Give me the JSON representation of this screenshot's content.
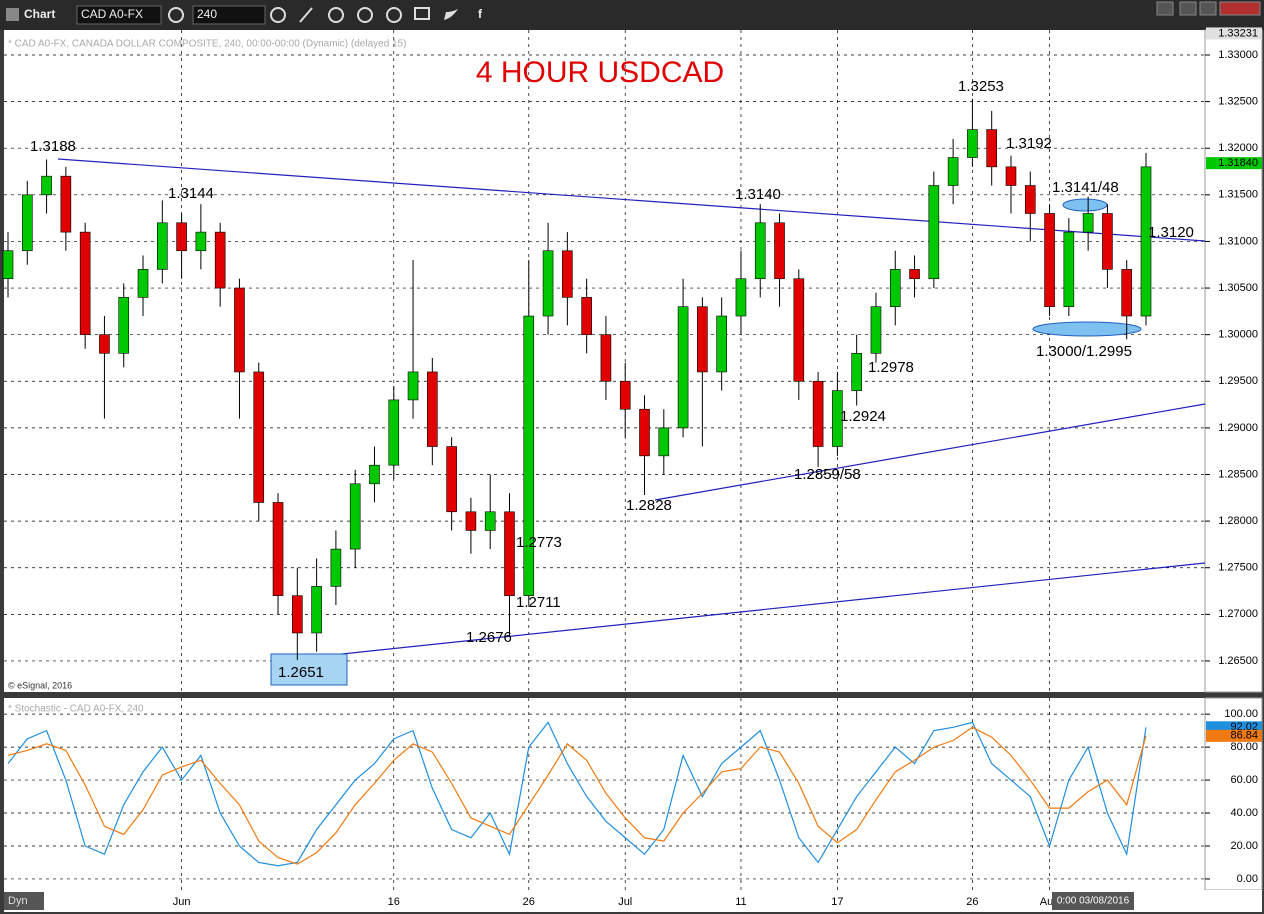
{
  "toolbar": {
    "app": "Chart",
    "symbol": "CAD A0-FX",
    "interval": "240"
  },
  "chart_data": [
    {
      "type": "candlestick",
      "title": "4 HOUR USDCAD",
      "subtitle": "* CAD A0-FX, CANADA DOLLAR COMPOSITE, 240, 00:00-00:00 (Dynamic) (delayed 15)",
      "credit": "© eSignal, 2016",
      "categories": [
        null,
        null,
        null,
        null,
        null,
        null,
        null,
        null,
        null,
        "Jun",
        null,
        null,
        null,
        null,
        null,
        null,
        null,
        null,
        null,
        null,
        "16",
        null,
        null,
        null,
        null,
        null,
        null,
        "26",
        null,
        null,
        null,
        null,
        "Jul",
        null,
        null,
        null,
        null,
        null,
        "11",
        null,
        null,
        null,
        null,
        "17",
        null,
        null,
        null,
        null,
        null,
        null,
        "26",
        null,
        null,
        null,
        "Aug",
        null,
        null,
        null,
        null,
        null
      ],
      "open": [
        1.306,
        1.309,
        1.315,
        1.317,
        1.311,
        1.3,
        1.298,
        1.304,
        1.307,
        1.312,
        1.309,
        1.311,
        1.305,
        1.296,
        1.282,
        1.272,
        1.268,
        1.273,
        1.277,
        1.284,
        1.286,
        1.293,
        1.296,
        1.288,
        1.281,
        1.279,
        1.281,
        1.272,
        1.302,
        1.309,
        1.304,
        1.3,
        1.295,
        1.292,
        1.287,
        1.29,
        1.303,
        1.296,
        1.302,
        1.306,
        1.312,
        1.306,
        1.295,
        1.288,
        1.294,
        1.298,
        1.303,
        1.307,
        1.306,
        1.316,
        1.319,
        1.322,
        1.318,
        1.316,
        1.313,
        1.303,
        1.311,
        1.313,
        1.307,
        1.302
      ],
      "high": [
        1.311,
        1.3165,
        1.3188,
        1.318,
        1.312,
        1.302,
        1.3055,
        1.3085,
        1.3144,
        1.313,
        1.314,
        1.312,
        1.306,
        1.297,
        1.283,
        1.275,
        1.276,
        1.279,
        1.2855,
        1.288,
        1.2945,
        1.308,
        1.2975,
        1.289,
        1.2825,
        1.285,
        1.283,
        1.308,
        1.312,
        1.311,
        1.306,
        1.302,
        1.297,
        1.2935,
        1.292,
        1.306,
        1.304,
        1.304,
        1.309,
        1.314,
        1.313,
        1.307,
        1.296,
        1.296,
        1.3,
        1.3045,
        1.309,
        1.3085,
        1.3175,
        1.321,
        1.3253,
        1.324,
        1.3192,
        1.3175,
        1.314,
        1.3125,
        1.3148,
        1.314,
        1.308,
        1.3195
      ],
      "low": [
        1.304,
        1.3075,
        1.313,
        1.309,
        1.2985,
        1.291,
        1.2965,
        1.302,
        1.3055,
        1.306,
        1.307,
        1.303,
        1.291,
        1.28,
        1.27,
        1.2651,
        1.266,
        1.271,
        1.275,
        1.282,
        1.2845,
        1.291,
        1.286,
        1.279,
        1.2765,
        1.277,
        1.2676,
        1.271,
        1.3,
        1.301,
        1.298,
        1.293,
        1.289,
        1.2828,
        1.285,
        1.289,
        1.288,
        1.294,
        1.3,
        1.304,
        1.303,
        1.293,
        1.2858,
        1.287,
        1.2924,
        1.297,
        1.301,
        1.304,
        1.305,
        1.314,
        1.318,
        1.316,
        1.313,
        1.31,
        1.302,
        1.302,
        1.309,
        1.305,
        1.2995,
        1.301
      ],
      "close": [
        1.309,
        1.315,
        1.317,
        1.311,
        1.3,
        1.298,
        1.304,
        1.307,
        1.312,
        1.309,
        1.311,
        1.305,
        1.296,
        1.282,
        1.272,
        1.268,
        1.273,
        1.277,
        1.284,
        1.286,
        1.293,
        1.296,
        1.288,
        1.281,
        1.279,
        1.281,
        1.272,
        1.302,
        1.309,
        1.304,
        1.3,
        1.295,
        1.292,
        1.287,
        1.29,
        1.303,
        1.296,
        1.302,
        1.306,
        1.312,
        1.306,
        1.295,
        1.288,
        1.294,
        1.298,
        1.303,
        1.307,
        1.306,
        1.316,
        1.319,
        1.322,
        1.318,
        1.316,
        1.313,
        1.303,
        1.311,
        1.313,
        1.307,
        1.302,
        1.318
      ],
      "up_color": "#00c800",
      "down_color": "#e00000",
      "ylim": [
        1.26167,
        1.33268
      ],
      "yticks": [
        {
          "value": 1.33,
          "label": "1.33000"
        },
        {
          "value": 1.325,
          "label": "1.32500"
        },
        {
          "value": 1.32,
          "label": "1.32000"
        },
        {
          "value": 1.315,
          "label": "1.31500"
        },
        {
          "value": 1.31,
          "label": "1.31000"
        },
        {
          "value": 1.305,
          "label": "1.30500"
        },
        {
          "value": 1.3,
          "label": "1.30000"
        },
        {
          "value": 1.295,
          "label": "1.29500"
        },
        {
          "value": 1.29,
          "label": "1.29000"
        },
        {
          "value": 1.285,
          "label": "1.28500"
        },
        {
          "value": 1.28,
          "label": "1.28000"
        },
        {
          "value": 1.275,
          "label": "1.27500"
        },
        {
          "value": 1.27,
          "label": "1.27000"
        },
        {
          "value": 1.265,
          "label": "1.26500"
        }
      ],
      "markers": [
        {
          "value": 1.33231,
          "label": "1.33231",
          "color": "#e0e0e0"
        },
        {
          "value": 1.3184,
          "label": "1.31840",
          "color": "#00c800"
        }
      ],
      "annotations": [
        "1.3188",
        "1.3144",
        "1.3140",
        "1.3253",
        "1.3192",
        "1.3141/48",
        "1.3120",
        "1.3000/1.2995",
        "1.2978",
        "1.2924",
        "1.2859/58",
        "1.2828",
        "1.2773",
        "1.2711",
        "1.2676",
        "1.2651"
      ],
      "grid": true
    },
    {
      "type": "line",
      "title": "* Stochastic - CAD A0-FX, 240",
      "series": [
        {
          "name": "%K",
          "color": "#1f8fe0",
          "values": [
            70,
            85,
            90,
            60,
            20,
            15,
            45,
            65,
            80,
            60,
            75,
            40,
            20,
            10,
            8,
            10,
            30,
            45,
            60,
            70,
            85,
            90,
            55,
            30,
            25,
            40,
            15,
            80,
            95,
            70,
            50,
            35,
            25,
            15,
            30,
            75,
            50,
            70,
            80,
            90,
            60,
            25,
            10,
            30,
            50,
            65,
            80,
            70,
            90,
            92,
            95,
            70,
            60,
            50,
            20,
            60,
            80,
            40,
            15,
            92.02
          ]
        },
        {
          "name": "%D",
          "color": "#f07a10",
          "values": [
            75,
            78,
            82,
            78,
            57,
            32,
            27,
            42,
            63,
            68,
            72,
            58,
            45,
            23,
            13,
            9,
            16,
            28,
            45,
            58,
            72,
            82,
            77,
            58,
            37,
            32,
            27,
            45,
            63,
            82,
            72,
            52,
            37,
            25,
            23,
            40,
            52,
            65,
            67,
            80,
            77,
            58,
            32,
            22,
            30,
            48,
            65,
            72,
            80,
            84,
            92,
            86,
            75,
            60,
            43,
            43,
            53,
            60,
            45,
            86.84
          ]
        }
      ],
      "ylim": [
        -6.7,
        109.8
      ],
      "yticks": [
        {
          "value": 100,
          "label": "100.00"
        },
        {
          "value": 80,
          "label": "80.00"
        },
        {
          "value": 60,
          "label": "60.00"
        },
        {
          "value": 40,
          "label": "40.00"
        },
        {
          "value": 20,
          "label": "20.00"
        },
        {
          "value": 0,
          "label": "0.00"
        }
      ],
      "markers": [
        {
          "value": 92.02,
          "label": "92.02",
          "color": "#1f8fe0"
        },
        {
          "value": 86.84,
          "label": "86.84",
          "color": "#f07a10"
        }
      ],
      "grid": true
    }
  ],
  "status": {
    "mode": "Dyn",
    "cursor_time": "0:00 03/08/2016"
  }
}
